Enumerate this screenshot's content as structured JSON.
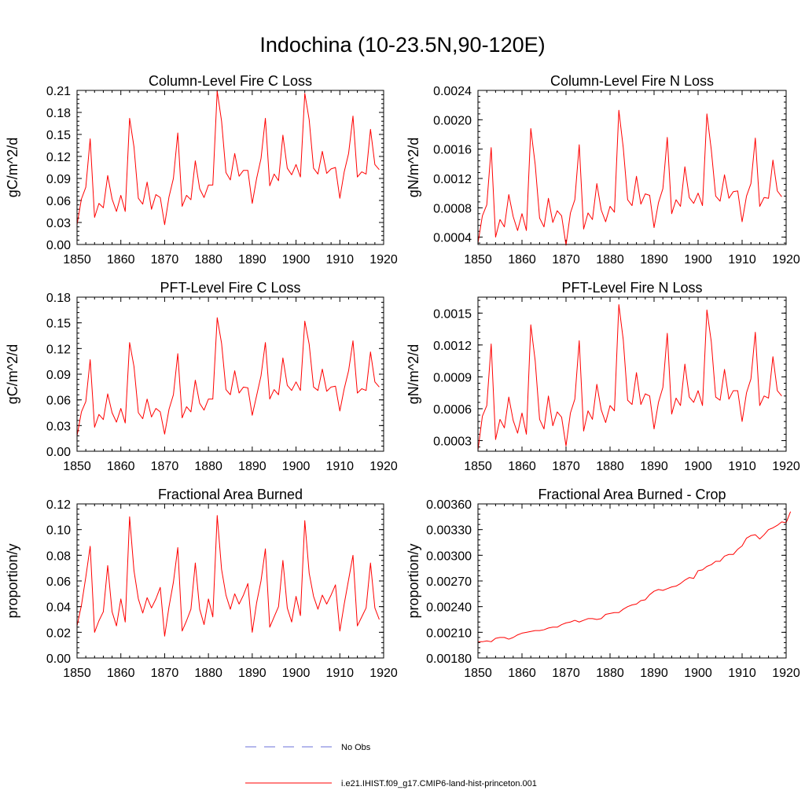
{
  "figure_title": "Indochina (10-23.5N,90-120E)",
  "legend": [
    {
      "label": "No Obs",
      "color": "#6a72d8",
      "style": "dashed"
    },
    {
      "label": "i.e21.IHIST.f09_g17.CMIP6-land-hist-princeton.001",
      "color": "#ff0000",
      "style": "solid"
    }
  ],
  "chart_data": [
    {
      "type": "line",
      "title": "Column-Level Fire C Loss",
      "ylabel": "gC/m^2/d",
      "xlim": [
        1850,
        1920
      ],
      "ylim": [
        0,
        0.21
      ],
      "xticks": [
        1850,
        1860,
        1870,
        1880,
        1890,
        1900,
        1910,
        1920
      ],
      "yticks": [
        "0.00",
        "0.03",
        "0.06",
        "0.09",
        "0.12",
        "0.15",
        "0.18",
        "0.21"
      ],
      "series": [
        {
          "color": "#ff0000",
          "x_start": 1850,
          "values": [
            0.027,
            0.062,
            0.078,
            0.144,
            0.037,
            0.056,
            0.05,
            0.094,
            0.062,
            0.045,
            0.067,
            0.045,
            0.172,
            0.133,
            0.063,
            0.055,
            0.085,
            0.048,
            0.068,
            0.064,
            0.027,
            0.065,
            0.09,
            0.152,
            0.052,
            0.067,
            0.061,
            0.114,
            0.076,
            0.064,
            0.081,
            0.081,
            0.209,
            0.168,
            0.098,
            0.088,
            0.124,
            0.093,
            0.101,
            0.101,
            0.056,
            0.09,
            0.117,
            0.172,
            0.08,
            0.096,
            0.087,
            0.149,
            0.104,
            0.095,
            0.109,
            0.092,
            0.206,
            0.17,
            0.104,
            0.096,
            0.127,
            0.097,
            0.103,
            0.105,
            0.063,
            0.099,
            0.124,
            0.175,
            0.092,
            0.099,
            0.096,
            0.157,
            0.109,
            0.102
          ]
        }
      ]
    },
    {
      "type": "line",
      "title": "Column-Level Fire N Loss",
      "ylabel": "gN/m^2/d",
      "xlim": [
        1850,
        1920
      ],
      "ylim": [
        0.0003,
        0.0024
      ],
      "xticks": [
        1850,
        1860,
        1870,
        1880,
        1890,
        1900,
        1910,
        1920
      ],
      "yticks": [
        "0.0004",
        "0.0008",
        "0.0012",
        "0.0016",
        "0.0020",
        "0.0024"
      ],
      "series": [
        {
          "color": "#ff0000",
          "x_start": 1850,
          "values": [
            0.00032,
            0.00069,
            0.00084,
            0.00162,
            0.0004,
            0.00064,
            0.00054,
            0.00098,
            0.00068,
            0.00049,
            0.00072,
            0.00049,
            0.00188,
            0.00139,
            0.00066,
            0.00054,
            0.00093,
            0.0006,
            0.00076,
            0.00069,
            0.00029,
            0.00073,
            0.00091,
            0.00166,
            0.00051,
            0.00073,
            0.00064,
            0.00113,
            0.00077,
            0.00061,
            0.00082,
            0.00074,
            0.00213,
            0.00162,
            0.00091,
            0.00083,
            0.00123,
            0.00085,
            0.00099,
            0.00097,
            0.00053,
            0.00087,
            0.00106,
            0.00176,
            0.00072,
            0.00091,
            0.00082,
            0.00136,
            0.00094,
            0.00086,
            0.001,
            0.00083,
            0.00208,
            0.00159,
            0.00096,
            0.00089,
            0.00125,
            0.00093,
            0.00102,
            0.00103,
            0.00061,
            0.00096,
            0.00113,
            0.00175,
            0.00082,
            0.00094,
            0.00093,
            0.00145,
            0.00103,
            0.00095
          ]
        }
      ]
    },
    {
      "type": "line",
      "title": "PFT-Level Fire C Loss",
      "ylabel": "gC/m^2/d",
      "xlim": [
        1850,
        1920
      ],
      "ylim": [
        0,
        0.18
      ],
      "xticks": [
        1850,
        1860,
        1870,
        1880,
        1890,
        1900,
        1910,
        1920
      ],
      "yticks": [
        "0.00",
        "0.03",
        "0.06",
        "0.09",
        "0.12",
        "0.15",
        "0.18"
      ],
      "series": [
        {
          "color": "#ff0000",
          "x_start": 1850,
          "values": [
            0.018,
            0.046,
            0.058,
            0.107,
            0.028,
            0.043,
            0.037,
            0.067,
            0.045,
            0.034,
            0.05,
            0.033,
            0.127,
            0.099,
            0.045,
            0.038,
            0.061,
            0.04,
            0.05,
            0.046,
            0.02,
            0.049,
            0.066,
            0.114,
            0.039,
            0.052,
            0.046,
            0.083,
            0.056,
            0.048,
            0.061,
            0.061,
            0.156,
            0.126,
            0.072,
            0.066,
            0.094,
            0.068,
            0.075,
            0.074,
            0.042,
            0.065,
            0.088,
            0.127,
            0.061,
            0.072,
            0.066,
            0.109,
            0.077,
            0.071,
            0.081,
            0.071,
            0.152,
            0.125,
            0.075,
            0.071,
            0.096,
            0.07,
            0.075,
            0.076,
            0.047,
            0.073,
            0.094,
            0.129,
            0.068,
            0.073,
            0.071,
            0.116,
            0.081,
            0.075
          ]
        }
      ]
    },
    {
      "type": "line",
      "title": "PFT-Level Fire N Loss",
      "ylabel": "gN/m^2/d",
      "xlim": [
        1850,
        1920
      ],
      "ylim": [
        0.0002,
        0.00165
      ],
      "xticks": [
        1850,
        1860,
        1870,
        1880,
        1890,
        1900,
        1910,
        1920
      ],
      "yticks": [
        "0.0003",
        "0.0006",
        "0.0009",
        "0.0012",
        "0.0015"
      ],
      "series": [
        {
          "color": "#ff0000",
          "x_start": 1850,
          "values": [
            0.00021,
            0.00053,
            0.00063,
            0.00121,
            0.00031,
            0.0005,
            0.00042,
            0.00071,
            0.00049,
            0.00037,
            0.00056,
            0.00036,
            0.00139,
            0.00105,
            0.0005,
            0.00041,
            0.00072,
            0.00044,
            0.00057,
            0.00052,
            0.00025,
            0.00056,
            0.00069,
            0.00124,
            0.00039,
            0.00058,
            0.0005,
            0.00083,
            0.00059,
            0.00047,
            0.00063,
            0.00058,
            0.00158,
            0.00125,
            0.00068,
            0.00064,
            0.00094,
            0.00064,
            0.00074,
            0.00072,
            0.00041,
            0.00066,
            0.0008,
            0.00131,
            0.00055,
            0.0007,
            0.00063,
            0.00102,
            0.00071,
            0.00066,
            0.00077,
            0.00063,
            0.00153,
            0.00123,
            0.00071,
            0.00068,
            0.00097,
            0.00069,
            0.00077,
            0.00077,
            0.00048,
            0.00075,
            0.00088,
            0.00132,
            0.00063,
            0.00072,
            0.0007,
            0.00109,
            0.00077,
            0.00072
          ]
        }
      ]
    },
    {
      "type": "line",
      "title": "Fractional Area Burned",
      "ylabel": "proportion/y",
      "xlim": [
        1850,
        1920
      ],
      "ylim": [
        0,
        0.12
      ],
      "xticks": [
        1850,
        1860,
        1870,
        1880,
        1890,
        1900,
        1910,
        1920
      ],
      "yticks": [
        "0.00",
        "0.02",
        "0.04",
        "0.06",
        "0.08",
        "0.10",
        "0.12"
      ],
      "series": [
        {
          "color": "#ff0000",
          "x_start": 1850,
          "values": [
            0.025,
            0.041,
            0.063,
            0.087,
            0.02,
            0.029,
            0.036,
            0.072,
            0.036,
            0.025,
            0.046,
            0.028,
            0.11,
            0.068,
            0.046,
            0.035,
            0.047,
            0.039,
            0.046,
            0.055,
            0.017,
            0.04,
            0.059,
            0.086,
            0.021,
            0.029,
            0.038,
            0.074,
            0.038,
            0.026,
            0.046,
            0.032,
            0.111,
            0.069,
            0.049,
            0.038,
            0.05,
            0.042,
            0.049,
            0.058,
            0.02,
            0.043,
            0.06,
            0.085,
            0.024,
            0.032,
            0.04,
            0.076,
            0.039,
            0.028,
            0.048,
            0.033,
            0.107,
            0.066,
            0.048,
            0.038,
            0.049,
            0.042,
            0.049,
            0.057,
            0.021,
            0.042,
            0.061,
            0.08,
            0.025,
            0.032,
            0.039,
            0.074,
            0.039,
            0.03
          ]
        }
      ]
    },
    {
      "type": "line",
      "title": "Fractional Area Burned - Crop",
      "ylabel": "proportion/y",
      "xlim": [
        1850,
        1920
      ],
      "ylim": [
        0.0018,
        0.0036
      ],
      "xticks": [
        1850,
        1860,
        1870,
        1880,
        1890,
        1900,
        1910,
        1920
      ],
      "yticks": [
        "0.00180",
        "0.00210",
        "0.00240",
        "0.00270",
        "0.00300",
        "0.00330",
        "0.00360"
      ],
      "series": [
        {
          "color": "#ff0000",
          "x_start": 1850,
          "values": [
            0.00199,
            0.00199,
            0.002,
            0.00199,
            0.00203,
            0.00204,
            0.00204,
            0.00202,
            0.00204,
            0.00207,
            0.00209,
            0.0021,
            0.00211,
            0.00212,
            0.00212,
            0.00213,
            0.00215,
            0.00216,
            0.00216,
            0.00219,
            0.00221,
            0.00222,
            0.00224,
            0.00222,
            0.00224,
            0.00226,
            0.00226,
            0.00225,
            0.00226,
            0.00231,
            0.00232,
            0.00233,
            0.00233,
            0.00237,
            0.0024,
            0.00242,
            0.00243,
            0.00247,
            0.00248,
            0.00254,
            0.00258,
            0.0026,
            0.00259,
            0.00261,
            0.00263,
            0.00264,
            0.00267,
            0.00271,
            0.00274,
            0.00273,
            0.00282,
            0.00283,
            0.00287,
            0.00289,
            0.00293,
            0.00293,
            0.00299,
            0.00301,
            0.00301,
            0.00307,
            0.00311,
            0.0032,
            0.00323,
            0.00324,
            0.00319,
            0.00324,
            0.0033,
            0.00332,
            0.00335,
            0.00339,
            0.00338,
            0.00351
          ]
        }
      ]
    }
  ]
}
